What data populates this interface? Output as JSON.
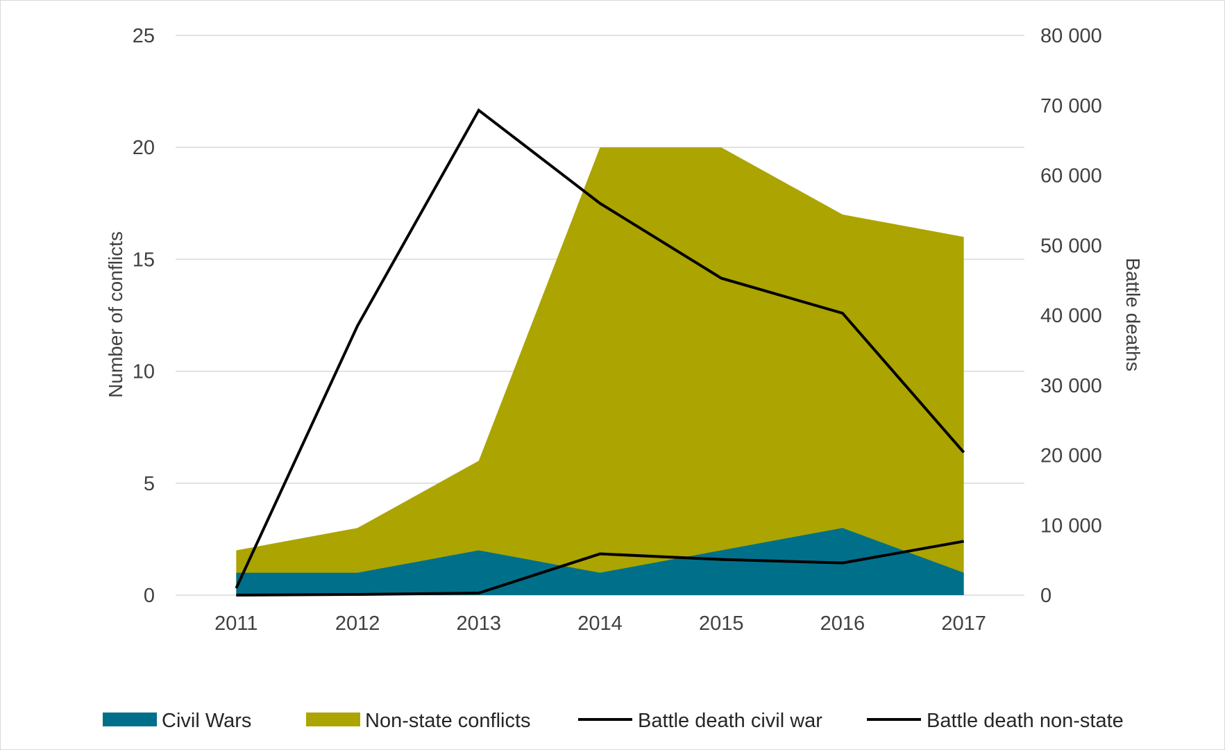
{
  "chart_data": {
    "type": "area",
    "title": "",
    "x": [
      "2011",
      "2012",
      "2013",
      "2014",
      "2015",
      "2016",
      "2017"
    ],
    "left_axis": {
      "label": "Number of conflicts",
      "ylim": [
        0,
        25
      ],
      "ticks": [
        "0",
        "5",
        "10",
        "15",
        "20",
        "25"
      ]
    },
    "right_axis": {
      "label": "Battle deaths",
      "ylim": [
        0,
        80000
      ],
      "ticks": [
        "0",
        "10 000",
        "20 000",
        "30 000",
        "40 000",
        "50 000",
        "60 000",
        "70 000",
        "80 000"
      ]
    },
    "series": [
      {
        "name": "Civil Wars",
        "type": "area",
        "axis": "left",
        "color": "#00708A",
        "values": [
          1,
          1,
          2,
          1,
          2,
          3,
          1
        ]
      },
      {
        "name": "Non-state conflicts",
        "type": "area",
        "axis": "left",
        "color": "#ACA400",
        "values": [
          2,
          3,
          6,
          20,
          20,
          17,
          16
        ]
      },
      {
        "name": "Battle death civil war",
        "type": "line",
        "axis": "right",
        "color": "#000000",
        "values": [
          1000,
          38500,
          69300,
          56000,
          45300,
          40300,
          20400
        ]
      },
      {
        "name": "Battle death non-state",
        "type": "line",
        "axis": "right",
        "color": "#000000",
        "values": [
          0,
          100,
          300,
          5900,
          5100,
          4600,
          7700
        ]
      }
    ],
    "grid": true,
    "legend": "bottom"
  }
}
